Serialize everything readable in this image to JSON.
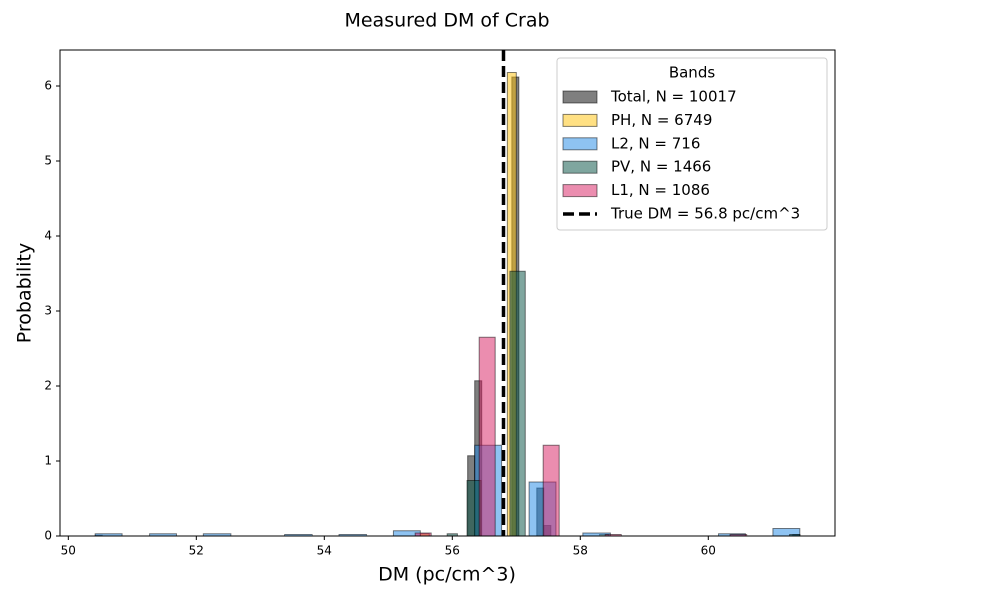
{
  "chart_data": {
    "type": "histogram",
    "title": "Measured DM of Crab",
    "xlabel": "DM (pc/cm^3)",
    "ylabel": "Probability",
    "xlim": [
      49.87,
      61.98
    ],
    "ylim": [
      0,
      6.48
    ],
    "xticks": [
      50,
      52,
      54,
      56,
      58,
      60
    ],
    "yticks": [
      0,
      1,
      2,
      3,
      4,
      5,
      6
    ],
    "legend_title": "Bands",
    "legend_position": "upper right",
    "series": [
      {
        "name": "Total, N = 10017",
        "color": "#000000",
        "opacity": 0.5,
        "bins": [
          50.42,
          50.53,
          56.24,
          56.35,
          56.46,
          56.93,
          57.04,
          57.32,
          57.43,
          57.54,
          61.32,
          61.43
        ],
        "values": [
          0.01,
          0,
          1.07,
          2.07,
          0,
          6.12,
          0,
          0.64,
          0.14,
          0,
          0.02
        ]
      },
      {
        "name": "PH, N = 6749",
        "color": "#ffc107",
        "opacity": 0.5,
        "bins": [
          55.5,
          55.64,
          56.86,
          57.0,
          58.3,
          58.44
        ],
        "values": [
          0.03,
          0,
          6.18,
          0,
          0.02
        ]
      },
      {
        "name": "L2, N = 716",
        "color": "#1e88e5",
        "opacity": 0.5,
        "bins": [
          50.42,
          50.84,
          51.27,
          51.69,
          52.11,
          52.54,
          52.96,
          53.38,
          53.81,
          54.23,
          54.66,
          55.08,
          55.5,
          55.93,
          56.35,
          56.77,
          57.2,
          57.62,
          58.04,
          58.47,
          58.89,
          59.31,
          59.74,
          60.16,
          60.58,
          61.01,
          61.43
        ],
        "values": [
          0.03,
          0,
          0.03,
          0,
          0.03,
          0,
          0,
          0.02,
          0,
          0.02,
          0,
          0.07,
          0,
          0,
          1.21,
          0,
          0.72,
          0,
          0.04,
          0,
          0,
          0,
          0,
          0.03,
          0,
          0.1
        ]
      },
      {
        "name": "PV, N = 1466",
        "color": "#004d40",
        "opacity": 0.5,
        "bins": [
          55.92,
          56.08,
          56.23,
          56.45,
          56.9,
          57.14,
          61.27,
          61.43
        ],
        "values": [
          0.03,
          0,
          0.74,
          0,
          3.53,
          0,
          0.02
        ]
      },
      {
        "name": "L1, N = 1086",
        "color": "#d81b60",
        "opacity": 0.5,
        "bins": [
          55.42,
          55.67,
          56.42,
          56.67,
          57.42,
          57.67,
          58.39,
          58.64,
          60.34,
          60.6
        ],
        "values": [
          0.04,
          0,
          2.65,
          0,
          1.21,
          0,
          0.02,
          0,
          0.02
        ]
      }
    ],
    "vline": {
      "x": 56.8,
      "label": "True DM = 56.8 pc/cm^3",
      "color": "#000000",
      "style": "dashed"
    }
  }
}
